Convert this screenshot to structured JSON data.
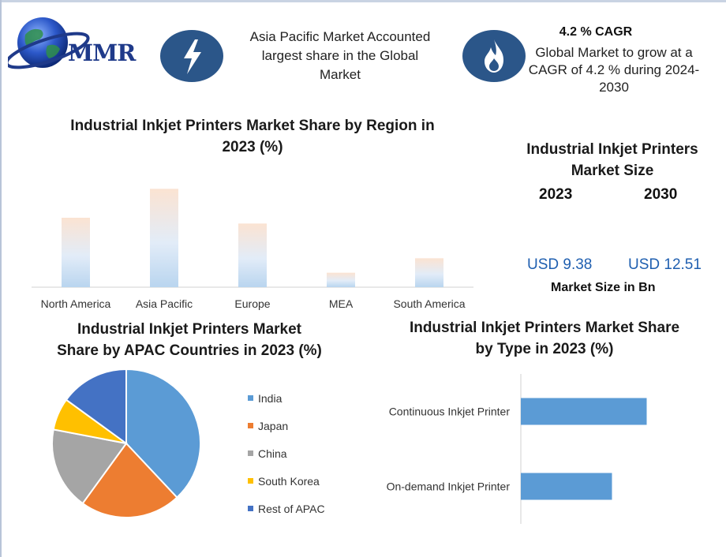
{
  "brand": {
    "logo_text": "MMR"
  },
  "highlights": {
    "left_text_lines": [
      "Asia Pacific Market Accounted",
      "largest share in the Global",
      "Market"
    ],
    "cagr_title": "4.2 % CAGR",
    "cagr_text_lines": [
      "Global Market to grow at a",
      "CAGR of 4.2 % during 2024-",
      "2030"
    ],
    "icon_left": "lightning-bolt-icon",
    "icon_right": "flame-icon"
  },
  "market_size": {
    "title_lines": [
      "Industrial Inkjet Printers",
      "Market Size"
    ],
    "year_1": "2023",
    "year_2": "2030",
    "value_1": "USD 9.38",
    "value_2": "USD 12.51",
    "unit": "Market Size in Bn"
  },
  "colors": {
    "accent_blue": "#2b5689",
    "value_blue": "#1f5fb0",
    "type_bar": "#5b9bd5"
  },
  "chart_data": [
    {
      "type": "bar",
      "title_lines": [
        "Industrial Inkjet Printers Market Share by Region in",
        "2023 (%)"
      ],
      "categories": [
        "North America",
        "Asia Pacific",
        "Europe",
        "MEA",
        "South America"
      ],
      "values": [
        24,
        34,
        22,
        5,
        10
      ],
      "ylim": [
        0,
        36
      ],
      "grid": false,
      "legend": "none"
    },
    {
      "type": "pie",
      "title_lines": [
        "Industrial Inkjet Printers Market",
        "Share by APAC Countries in 2023 (%)"
      ],
      "labels": [
        "India",
        "Japan",
        "China",
        "South Korea",
        "Rest of APAC"
      ],
      "values": [
        38,
        22,
        18,
        7,
        15
      ],
      "colors": [
        "#5b9bd5",
        "#ed7d31",
        "#a5a5a5",
        "#ffc000",
        "#4472c4"
      ],
      "legend": "right"
    },
    {
      "type": "bar",
      "orientation": "horizontal",
      "title_lines": [
        "Industrial Inkjet Printers Market Share",
        "by Type in 2023 (%)"
      ],
      "categories": [
        "Continuous Inkjet Printer",
        "On-demand Inkjet Printer"
      ],
      "values": [
        58,
        42
      ],
      "xlim": [
        0,
        80
      ],
      "grid": false,
      "legend": "none"
    }
  ]
}
